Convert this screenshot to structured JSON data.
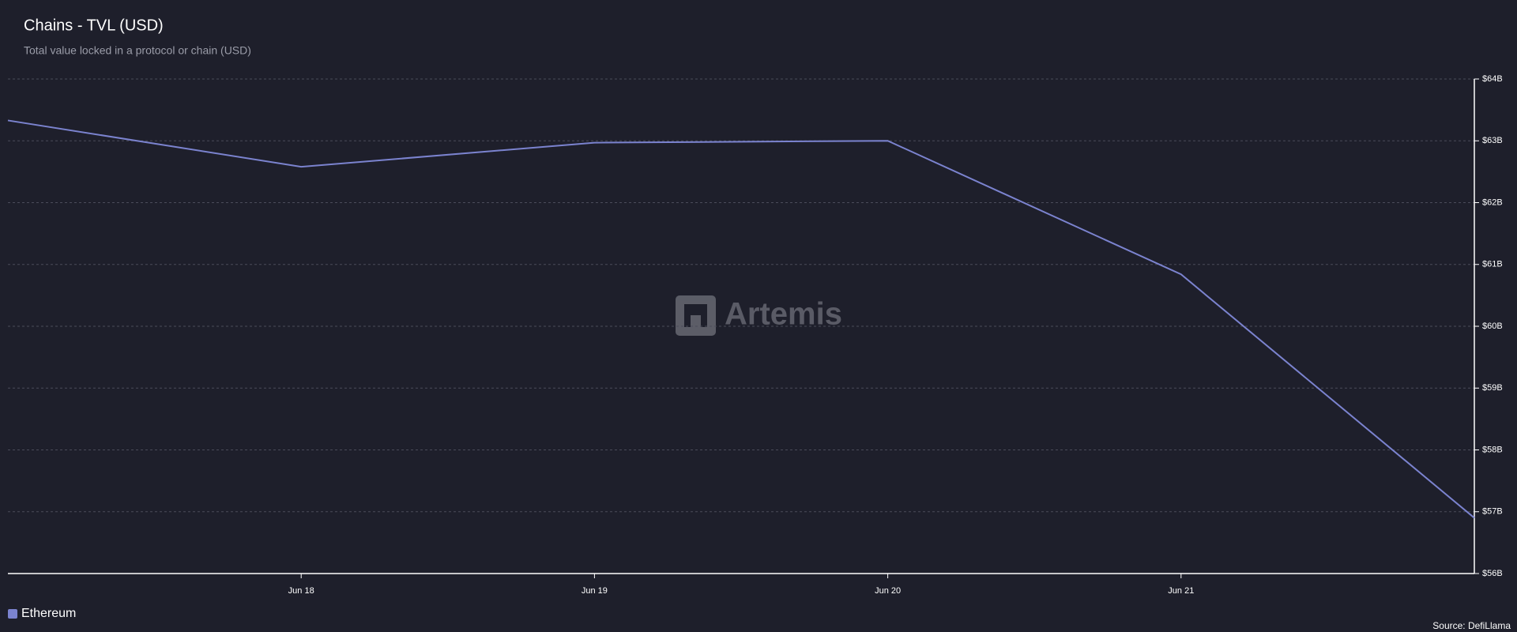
{
  "chart_data": {
    "type": "line",
    "title": "Chains - TVL (USD)",
    "subtitle": "Total value locked in a protocol or chain (USD)",
    "watermark": "Artemis",
    "source": "Source: DefiLlama",
    "categories": [
      null,
      "Jun 18",
      "Jun 19",
      "Jun 20",
      "Jun 21",
      null
    ],
    "series": [
      {
        "name": "Ethereum",
        "color": "#7b83cf",
        "values": [
          63.33,
          62.58,
          62.97,
          63.0,
          60.84,
          56.9
        ]
      }
    ],
    "ylim": [
      56,
      64
    ],
    "yticks": [
      {
        "value": 56,
        "label": "$56B"
      },
      {
        "value": 57,
        "label": "$57B"
      },
      {
        "value": 58,
        "label": "$58B"
      },
      {
        "value": 59,
        "label": "$59B"
      },
      {
        "value": 60,
        "label": "$60B"
      },
      {
        "value": 61,
        "label": "$61B"
      },
      {
        "value": 62,
        "label": "$62B"
      },
      {
        "value": 63,
        "label": "$63B"
      },
      {
        "value": 64,
        "label": "$64B"
      }
    ],
    "grid": true,
    "legend": "bottom-left"
  }
}
